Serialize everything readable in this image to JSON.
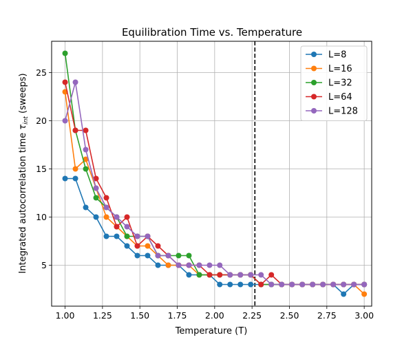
{
  "chart_data": {
    "type": "line",
    "title": "Equilibration Time vs. Temperature",
    "xlabel": "Temperature (T)",
    "ylabel_prefix": "Integrated autocorrelation time ",
    "ylabel_symbol": "τ",
    "ylabel_subscript": "int",
    "ylabel_suffix": " (sweeps)",
    "xlim": [
      0.91,
      3.05
    ],
    "ylim": [
      0.75,
      28.25
    ],
    "xticks": [
      1.0,
      1.25,
      1.5,
      1.75,
      2.0,
      2.25,
      2.5,
      2.75,
      3.0
    ],
    "xtick_labels": [
      "1.00",
      "1.25",
      "1.50",
      "1.75",
      "2.00",
      "2.25",
      "2.50",
      "2.75",
      "3.00"
    ],
    "yticks": [
      5,
      10,
      15,
      20,
      25
    ],
    "ytick_labels": [
      "5",
      "10",
      "15",
      "20",
      "25"
    ],
    "grid": true,
    "legend_position": "top-right",
    "vline": {
      "x": 2.269,
      "style": "dashed",
      "color": "#000000"
    },
    "x": [
      1.0,
      1.069,
      1.138,
      1.207,
      1.276,
      1.345,
      1.414,
      1.483,
      1.552,
      1.621,
      1.69,
      1.759,
      1.828,
      1.897,
      1.966,
      2.034,
      2.103,
      2.172,
      2.241,
      2.31,
      2.379,
      2.448,
      2.517,
      2.586,
      2.655,
      2.724,
      2.793,
      2.862,
      2.931,
      3.0
    ],
    "series": [
      {
        "name": "L=8",
        "color": "#1f77b4",
        "values": [
          14,
          14,
          11,
          10,
          8,
          8,
          7,
          6,
          6,
          5,
          5,
          5,
          4,
          4,
          4,
          3,
          3,
          3,
          3,
          3,
          3,
          3,
          3,
          3,
          3,
          3,
          3,
          2,
          3,
          3
        ]
      },
      {
        "name": "L=16",
        "color": "#ff7f0e",
        "values": [
          23,
          15,
          16,
          13,
          10,
          9,
          8,
          7,
          7,
          6,
          5,
          5,
          5,
          4,
          4,
          4,
          4,
          4,
          4,
          3,
          3,
          3,
          3,
          3,
          3,
          3,
          3,
          3,
          3,
          2
        ]
      },
      {
        "name": "L=32",
        "color": "#2ca02c",
        "values": [
          27,
          19,
          15,
          12,
          11,
          10,
          8,
          8,
          8,
          6,
          6,
          6,
          6,
          4,
          4,
          4,
          4,
          4,
          4,
          3,
          3,
          3,
          3,
          3,
          3,
          3,
          3,
          3,
          3,
          3
        ]
      },
      {
        "name": "L=64",
        "color": "#d62728",
        "values": [
          24,
          19,
          19,
          14,
          12,
          9,
          10,
          7,
          8,
          7,
          6,
          5,
          5,
          5,
          4,
          4,
          4,
          4,
          4,
          3,
          4,
          3,
          3,
          3,
          3,
          3,
          3,
          3,
          3,
          3
        ]
      },
      {
        "name": "L=128",
        "color": "#9467bd",
        "values": [
          20,
          24,
          17,
          13,
          11,
          10,
          9,
          8,
          8,
          6,
          6,
          5,
          5,
          5,
          5,
          5,
          4,
          4,
          4,
          4,
          3,
          3,
          3,
          3,
          3,
          3,
          3,
          3,
          3,
          3
        ]
      }
    ]
  }
}
